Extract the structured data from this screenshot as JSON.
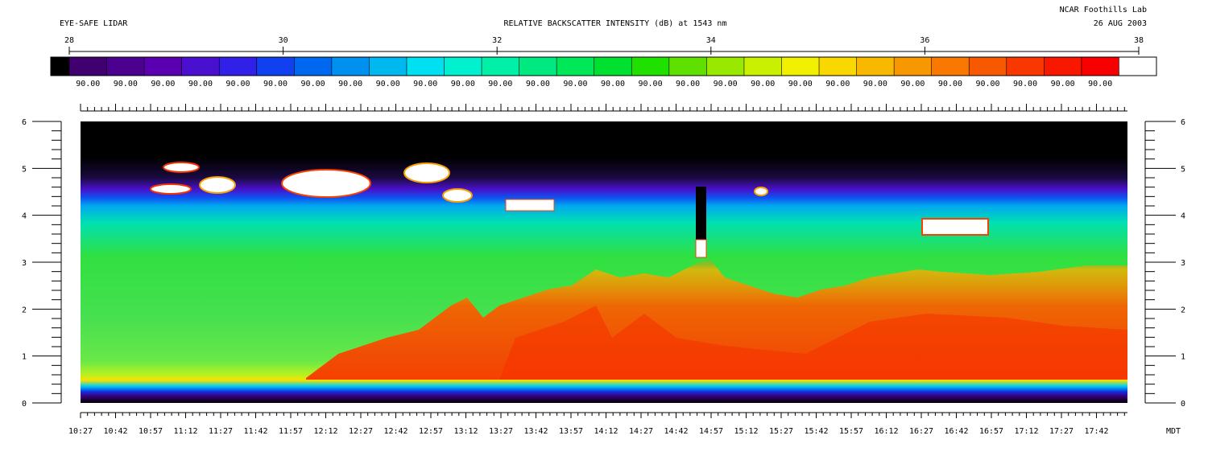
{
  "header": {
    "left_title": "EYE-SAFE LIDAR",
    "center_title": "RELATIVE BACKSCATTER INTENSITY (dB) at 1543 nm",
    "right_line1": "NCAR Foothills Lab",
    "right_line2": "26 AUG 2003"
  },
  "chart_data": {
    "type": "heatmap",
    "title": "RELATIVE BACKSCATTER INTENSITY (dB) at 1543 nm",
    "colorbar": {
      "scale_min": 28,
      "scale_max": 38,
      "tick_labels": [
        "28",
        "30",
        "32",
        "34",
        "36",
        "38"
      ],
      "bin_value_label": "90.00",
      "bin_count": 30,
      "colors": [
        "#000000",
        "#400070",
        "#4c0090",
        "#5a00b0",
        "#4a10d0",
        "#3020e8",
        "#1040f0",
        "#0068f0",
        "#0090f0",
        "#00b8f0",
        "#00e0f0",
        "#00f0d0",
        "#00f0a8",
        "#00e880",
        "#00e858",
        "#00e030",
        "#20e000",
        "#60e000",
        "#98e800",
        "#c8f000",
        "#f0f000",
        "#f8d800",
        "#f8b800",
        "#f89800",
        "#f87800",
        "#f85800",
        "#f83800",
        "#f81800",
        "#f80000",
        "#ffffff"
      ]
    },
    "x_axis": {
      "unit_label": "MDT",
      "tick_labels": [
        "10:27",
        "10:42",
        "10:57",
        "11:12",
        "11:27",
        "11:42",
        "11:57",
        "12:12",
        "12:27",
        "12:42",
        "12:57",
        "13:12",
        "13:27",
        "13:42",
        "13:57",
        "14:12",
        "14:27",
        "14:42",
        "14:57",
        "15:12",
        "15:27",
        "15:42",
        "15:57",
        "16:12",
        "16:27",
        "16:42",
        "16:57",
        "17:12",
        "17:27",
        "17:42"
      ]
    },
    "y_axis": {
      "tick_labels": [
        "0",
        "1",
        "2",
        "3",
        "4",
        "5",
        "6"
      ],
      "range": [
        0,
        6
      ]
    }
  }
}
